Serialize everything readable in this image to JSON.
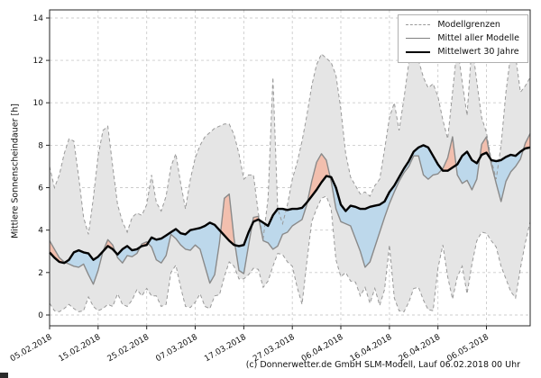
{
  "figure": {
    "ylabel": "Mittlere Sonnenscheindauer [h]",
    "caption": "(c) Donnerwetter.de GmbH SLM-Modell, Lauf 06.02.2018 00 Uhr"
  },
  "legend": {
    "items": [
      {
        "label": "Modellgrenzen",
        "style": "dashed-gray"
      },
      {
        "label": "Mittel aller Modelle",
        "style": "solid-gray"
      },
      {
        "label": "Mittelwert 30 Jahre",
        "style": "solid-black-thick"
      }
    ]
  },
  "chart_data": {
    "type": "line",
    "title": "",
    "xlabel": "",
    "ylabel": "Mittlere Sonnenscheindauer [h]",
    "grid": true,
    "legend_position": "upper right",
    "ylim": [
      -0.51,
      14.38
    ],
    "yticks": [
      0,
      2,
      4,
      6,
      8,
      10,
      12,
      14
    ],
    "x_unit": "days since 05.02.2018, 1 point per day",
    "x_tick_days": [
      0,
      10,
      20,
      30,
      40,
      50,
      60,
      70,
      80,
      90
    ],
    "x_tick_labels": [
      "05.02.2018",
      "15.02.2018",
      "25.02.2018",
      "07.03.2018",
      "17.03.2018",
      "27.03.2018",
      "06.04.2018",
      "16.04.2018",
      "26.04.2018",
      "06.05.2018"
    ],
    "colors": {
      "band": "#e5e5e5",
      "bounds": "#999999",
      "grid": "#cccccc",
      "model_mean": "#8a8a8a",
      "climatology": "#000000",
      "above": "#f2bfae",
      "below": "#bdd8eb",
      "axis": "#262626",
      "text": "#111111"
    },
    "series": [
      {
        "name": "Modellgrenzen (obere Grenze)",
        "role": "upper_bound",
        "values": [
          7.0,
          6.0,
          6.6,
          7.6,
          8.3,
          8.2,
          6.5,
          4.6,
          3.8,
          5.5,
          7.5,
          8.7,
          8.9,
          7.0,
          5.2,
          4.4,
          3.9,
          4.6,
          4.8,
          4.7,
          5.2,
          6.6,
          5.3,
          4.9,
          5.6,
          7.0,
          7.6,
          6.2,
          5.0,
          6.4,
          7.4,
          8.0,
          8.4,
          8.6,
          8.8,
          8.9,
          9.0,
          9.0,
          8.5,
          7.6,
          6.4,
          6.6,
          6.6,
          4.8,
          3.6,
          5.5,
          11.2,
          5.0,
          4.3,
          5.2,
          6.4,
          7.2,
          8.2,
          9.4,
          10.8,
          11.8,
          12.3,
          12.1,
          11.9,
          11.3,
          9.7,
          7.6,
          6.5,
          6.1,
          5.7,
          5.8,
          5.6,
          6.1,
          6.4,
          7.8,
          9.3,
          10.0,
          8.7,
          10.2,
          11.9,
          12.1,
          12.0,
          11.2,
          10.7,
          10.9,
          10.3,
          9.2,
          8.3,
          10.5,
          12.7,
          11.0,
          9.4,
          12.8,
          11.0,
          9.3,
          8.6,
          7.3,
          6.4,
          8.0,
          10.5,
          12.3,
          12.2,
          10.5,
          10.8,
          11.2
        ]
      },
      {
        "name": "Modellgrenzen (untere Grenze)",
        "role": "lower_bound",
        "values": [
          0.55,
          0.2,
          0.15,
          0.3,
          0.5,
          0.3,
          0.15,
          0.2,
          0.85,
          0.4,
          0.2,
          0.3,
          0.5,
          0.4,
          1.0,
          0.5,
          0.4,
          0.7,
          1.2,
          0.9,
          1.25,
          0.9,
          0.9,
          0.4,
          0.5,
          2.0,
          2.35,
          1.3,
          0.4,
          0.35,
          0.6,
          1.0,
          0.4,
          0.3,
          0.9,
          0.95,
          1.8,
          2.5,
          2.3,
          1.7,
          1.7,
          1.9,
          2.2,
          2.15,
          1.3,
          1.6,
          2.3,
          2.9,
          2.85,
          2.5,
          2.3,
          1.3,
          0.5,
          2.5,
          4.4,
          5.0,
          5.5,
          5.6,
          5.0,
          2.6,
          1.8,
          2.0,
          1.6,
          1.55,
          0.9,
          1.3,
          0.55,
          1.25,
          0.45,
          1.2,
          3.3,
          0.8,
          0.2,
          0.15,
          0.6,
          1.25,
          1.3,
          0.7,
          0.25,
          0.2,
          2.2,
          3.3,
          1.8,
          0.75,
          1.8,
          2.3,
          1.0,
          2.4,
          3.5,
          3.9,
          3.85,
          3.5,
          3.2,
          2.3,
          1.7,
          1.1,
          0.8,
          2.2,
          3.4,
          4.4
        ]
      },
      {
        "name": "Mittel aller Modelle",
        "role": "model_mean",
        "values": [
          3.5,
          3.1,
          2.7,
          2.5,
          2.4,
          2.3,
          2.25,
          2.4,
          1.9,
          1.45,
          2.1,
          3.0,
          3.55,
          3.3,
          2.7,
          2.45,
          2.8,
          2.75,
          2.9,
          3.35,
          3.45,
          3.2,
          2.6,
          2.45,
          2.8,
          3.8,
          3.6,
          3.3,
          3.1,
          3.05,
          3.3,
          3.1,
          2.3,
          1.5,
          1.9,
          3.4,
          5.5,
          5.7,
          3.6,
          2.1,
          1.95,
          3.3,
          4.6,
          4.65,
          3.5,
          3.4,
          3.1,
          3.25,
          3.8,
          3.9,
          4.2,
          4.35,
          4.5,
          5.2,
          6.3,
          7.2,
          7.6,
          7.3,
          6.3,
          5.0,
          4.4,
          4.3,
          4.2,
          3.6,
          3.0,
          2.25,
          2.5,
          3.2,
          3.9,
          4.6,
          5.25,
          5.8,
          6.3,
          6.7,
          7.0,
          7.5,
          7.5,
          6.6,
          6.4,
          6.6,
          6.65,
          6.9,
          7.4,
          8.4,
          6.6,
          6.2,
          6.35,
          5.9,
          6.4,
          8.05,
          8.4,
          7.1,
          6.2,
          5.35,
          6.3,
          6.75,
          7.0,
          7.35,
          8.1,
          8.55
        ]
      },
      {
        "name": "Mittelwert 30 Jahre",
        "role": "climatology",
        "values": [
          2.95,
          2.7,
          2.5,
          2.45,
          2.6,
          2.95,
          3.05,
          2.95,
          2.9,
          2.6,
          2.75,
          3.0,
          3.25,
          3.1,
          2.85,
          3.1,
          3.25,
          3.05,
          3.1,
          3.25,
          3.3,
          3.65,
          3.55,
          3.6,
          3.75,
          3.9,
          4.05,
          3.85,
          3.8,
          4.0,
          4.05,
          4.1,
          4.2,
          4.35,
          4.25,
          4.0,
          3.75,
          3.5,
          3.3,
          3.25,
          3.3,
          3.9,
          4.4,
          4.5,
          4.35,
          4.2,
          4.7,
          5.0,
          5.0,
          4.95,
          5.0,
          5.0,
          5.05,
          5.3,
          5.6,
          5.9,
          6.25,
          6.55,
          6.5,
          6.0,
          5.2,
          4.9,
          5.15,
          5.1,
          5.0,
          5.0,
          5.1,
          5.15,
          5.2,
          5.35,
          5.8,
          6.1,
          6.5,
          6.9,
          7.25,
          7.7,
          7.9,
          8.0,
          7.9,
          7.5,
          7.1,
          6.8,
          6.8,
          6.95,
          7.1,
          7.5,
          7.7,
          7.3,
          7.15,
          7.55,
          7.65,
          7.3,
          7.25,
          7.3,
          7.45,
          7.55,
          7.5,
          7.7,
          7.85,
          7.9
        ]
      }
    ]
  }
}
